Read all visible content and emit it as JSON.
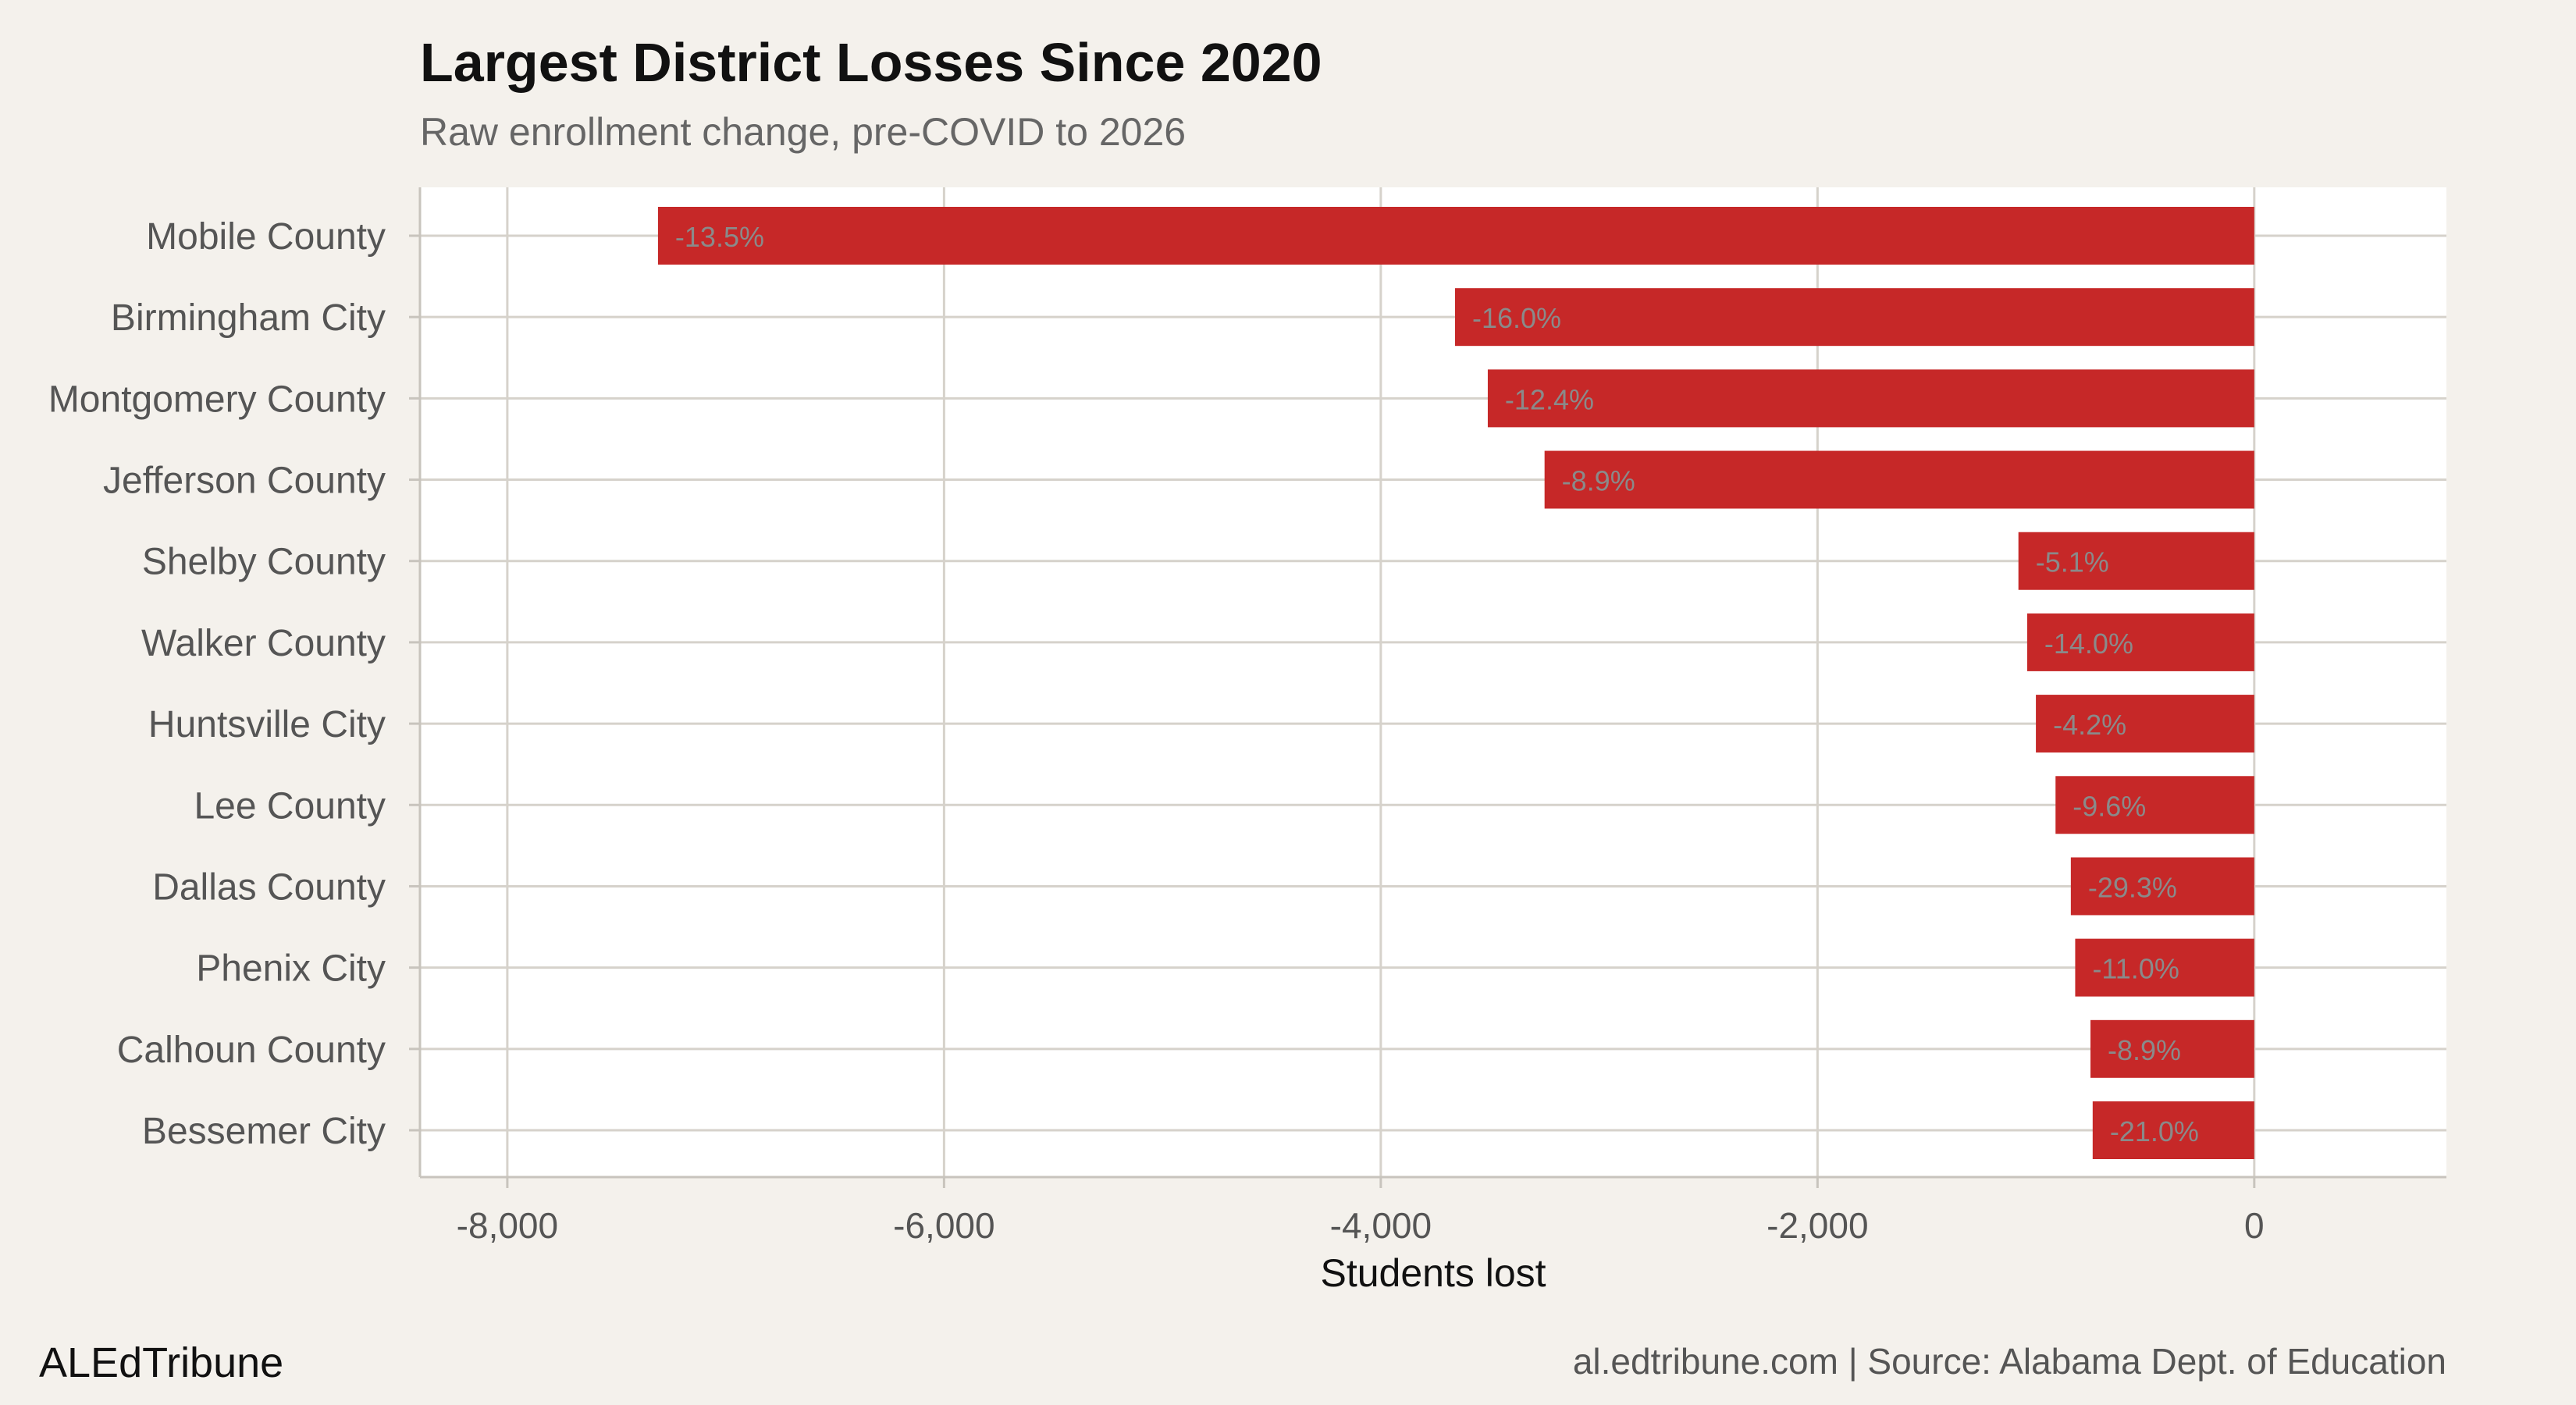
{
  "chart_data": {
    "type": "bar",
    "orientation": "horizontal",
    "title": "Largest District Losses Since 2020",
    "subtitle": "Raw enrollment change, pre-COVID to 2026",
    "xlabel": "Students lost",
    "ylabel": "",
    "xlim": [
      -8400,
      880
    ],
    "xticks": [
      -8000,
      -6000,
      -4000,
      -2000,
      0
    ],
    "xtick_labels": [
      "-8,000",
      "-6,000",
      "-4,000",
      "-2,000",
      "0"
    ],
    "grid": true,
    "bar_color": "#c62828",
    "categories": [
      "Mobile County",
      "Birmingham City",
      "Montgomery County",
      "Jefferson County",
      "Shelby County",
      "Walker County",
      "Huntsville City",
      "Lee County",
      "Dallas County",
      "Phenix City",
      "Calhoun County",
      "Bessemer City"
    ],
    "values": [
      -7310,
      -3660,
      -3510,
      -3250,
      -1080,
      -1040,
      -1000,
      -910,
      -840,
      -820,
      -750,
      -740
    ],
    "data_labels": [
      "-13.5%",
      "-16.0%",
      "-12.4%",
      "-8.9%",
      "-5.1%",
      "-14.0%",
      "-4.2%",
      "-9.6%",
      "-29.3%",
      "-11.0%",
      "-8.9%",
      "-21.0%"
    ]
  },
  "footer": {
    "brand": "ALEdTribune",
    "source": "al.edtribune.com | Source: Alabama Dept. of Education"
  }
}
